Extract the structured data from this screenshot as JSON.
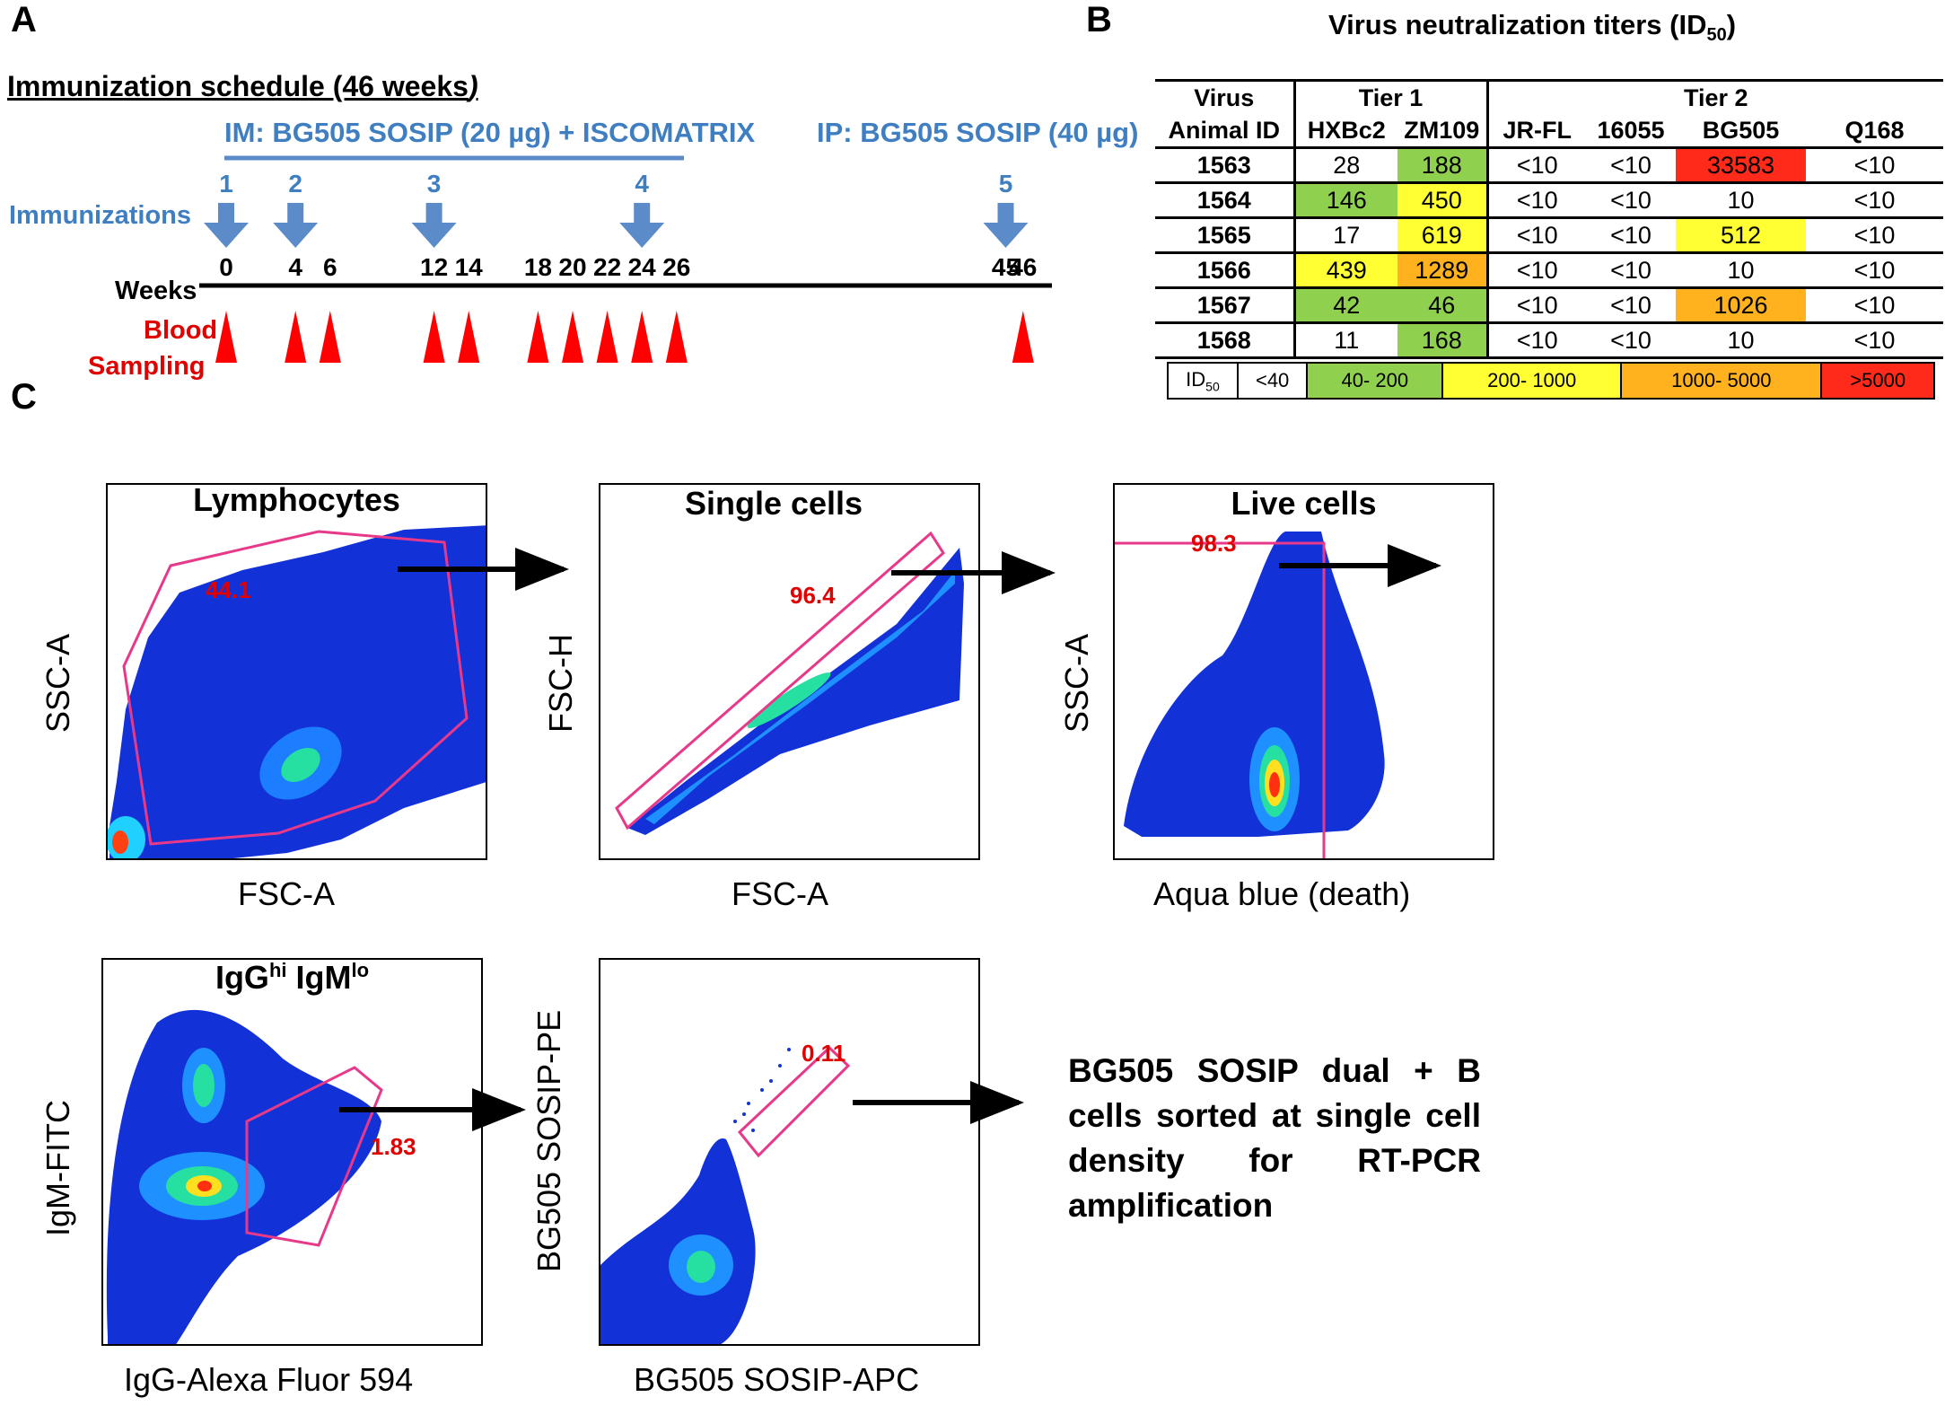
{
  "panels": {
    "a": "A",
    "b": "B",
    "c": "C"
  },
  "panelA": {
    "schedule_title": "Immunization schedule (46 weeks",
    "schedule_title_end": ")",
    "im_label": "IM: BG505 SOSIP (20 µg) + ISCOMATRIX",
    "ip_label": "IP: BG505 SOSIP (40 µg)",
    "immunizations_label": "Immunizations",
    "weeks_label": "Weeks",
    "blood_label_1": "Blood",
    "blood_label_2": "Sampling",
    "immunization_numbers": [
      "1",
      "2",
      "3",
      "4",
      "5"
    ],
    "immunization_weeks": [
      0,
      4,
      12,
      24,
      45
    ],
    "week_ticks": [
      "0",
      "4",
      "6",
      "12",
      "14",
      "18",
      "20",
      "22",
      "24",
      "26",
      "45",
      "46"
    ],
    "sampling_weeks": [
      0,
      4,
      6,
      12,
      14,
      18,
      20,
      22,
      24,
      26,
      46
    ],
    "colors": {
      "blue_text": "#3f7fc1",
      "arrow": "#5b8bc9",
      "sampling": "#ff0000"
    }
  },
  "panelB": {
    "title": "Virus neutralization titers (ID",
    "title_sub": "50",
    "title_end": ")",
    "header_virus": "Virus",
    "header_animal": "Animal ID",
    "tier1": "Tier 1",
    "tier2": "Tier 2",
    "columns": [
      "HXBc2",
      "ZM109",
      "JR-FL",
      "16055",
      "BG505",
      "Q168"
    ],
    "rows": [
      {
        "id": "1563",
        "values": [
          "28",
          "188",
          "<10",
          "<10",
          "33583",
          "<10"
        ],
        "colors": [
          "",
          "#8fd14f",
          "",
          "",
          "#ff2a1a",
          ""
        ]
      },
      {
        "id": "1564",
        "values": [
          "146",
          "450",
          "<10",
          "<10",
          "10",
          "<10"
        ],
        "colors": [
          "#8fd14f",
          "#ffff33",
          "",
          "",
          "",
          ""
        ]
      },
      {
        "id": "1565",
        "values": [
          "17",
          "619",
          "<10",
          "<10",
          "512",
          "<10"
        ],
        "colors": [
          "",
          "#ffff33",
          "",
          "",
          "#ffff33",
          ""
        ]
      },
      {
        "id": "1566",
        "values": [
          "439",
          "1289",
          "<10",
          "<10",
          "10",
          "<10"
        ],
        "colors": [
          "#ffff33",
          "#ffb21e",
          "",
          "",
          "",
          ""
        ]
      },
      {
        "id": "1567",
        "values": [
          "42",
          "46",
          "<10",
          "<10",
          "1026",
          "<10"
        ],
        "colors": [
          "#8fd14f",
          "#8fd14f",
          "",
          "",
          "#ffb21e",
          ""
        ]
      },
      {
        "id": "1568",
        "values": [
          "11",
          "168",
          "<10",
          "<10",
          "10",
          "<10"
        ],
        "colors": [
          "",
          "#8fd14f",
          "",
          "",
          "",
          ""
        ]
      }
    ],
    "legend": {
      "label": "ID",
      "label_sub": "50",
      "bins": [
        {
          "text": "<40",
          "color": "#ffffff"
        },
        {
          "text": "40- 200",
          "color": "#8fd14f"
        },
        {
          "text": "200- 1000",
          "color": "#ffff33"
        },
        {
          "text": "1000- 5000",
          "color": "#ffb21e"
        },
        {
          "text": ">5000",
          "color": "#ff2a1a"
        }
      ]
    }
  },
  "panelC": {
    "lymphocytes": {
      "title": "Lymphocytes",
      "x": "FSC-A",
      "y": "SSC-A",
      "pct": "44.1"
    },
    "single": {
      "title": "Single cells",
      "x": "FSC-A",
      "y": "FSC-H",
      "pct": "96.4"
    },
    "live": {
      "title": "Live cells",
      "x": "Aqua blue (death)",
      "y": "SSC-A",
      "pct": "98.3"
    },
    "igg": {
      "title_a": "IgG",
      "title_a_sup": "hi",
      "title_b": " IgM",
      "title_b_sup": "lo",
      "x": "IgG-Alexa Fluor 594",
      "y": "IgM-FITC",
      "pct": "1.83"
    },
    "sosip": {
      "x": "BG505 SOSIP-APC",
      "y": "BG505 SOSIP-PE",
      "pct": "0.11"
    },
    "sorted_text": "BG505 SOSIP dual + B cells sorted at single cell density for RT-PCR amplification",
    "gate_color": "#e8388a"
  }
}
